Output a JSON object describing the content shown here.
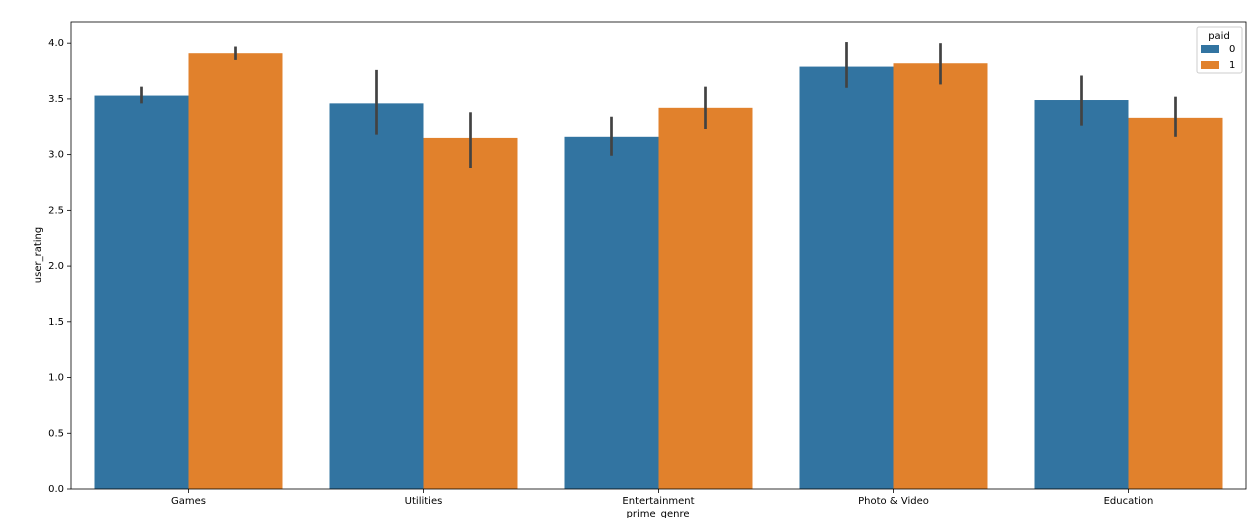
{
  "chart_data": {
    "type": "bar",
    "x_label": "prime_genre",
    "y_label": "user_rating",
    "categories": [
      "Games",
      "Utilities",
      "Entertainment",
      "Photo & Video",
      "Education"
    ],
    "legend_title": "paid",
    "legend_position": "upper right",
    "series": [
      {
        "name": "0",
        "color": "#3274a1",
        "values": [
          3.53,
          3.46,
          3.16,
          3.79,
          3.49
        ],
        "ci_low": [
          3.46,
          3.18,
          2.99,
          3.6,
          3.26
        ],
        "ci_high": [
          3.61,
          3.76,
          3.34,
          4.01,
          3.71
        ]
      },
      {
        "name": "1",
        "color": "#e1812c",
        "values": [
          3.91,
          3.15,
          3.42,
          3.82,
          3.33
        ],
        "ci_low": [
          3.85,
          2.88,
          3.23,
          3.63,
          3.16
        ],
        "ci_high": [
          3.97,
          3.38,
          3.61,
          4.0,
          3.52
        ]
      }
    ],
    "ylim": [
      0,
      4.19
    ],
    "yticks": [
      {
        "value": 0,
        "label": "0.0"
      },
      {
        "value": 0.5,
        "label": "0.5"
      },
      {
        "value": 1,
        "label": "1.0"
      },
      {
        "value": 1.5,
        "label": "1.5"
      },
      {
        "value": 2,
        "label": "2.0"
      },
      {
        "value": 2.5,
        "label": "2.5"
      },
      {
        "value": 3,
        "label": "3.0"
      },
      {
        "value": 3.5,
        "label": "3.5"
      },
      {
        "value": 4,
        "label": "4.0"
      }
    ],
    "grid": false
  }
}
